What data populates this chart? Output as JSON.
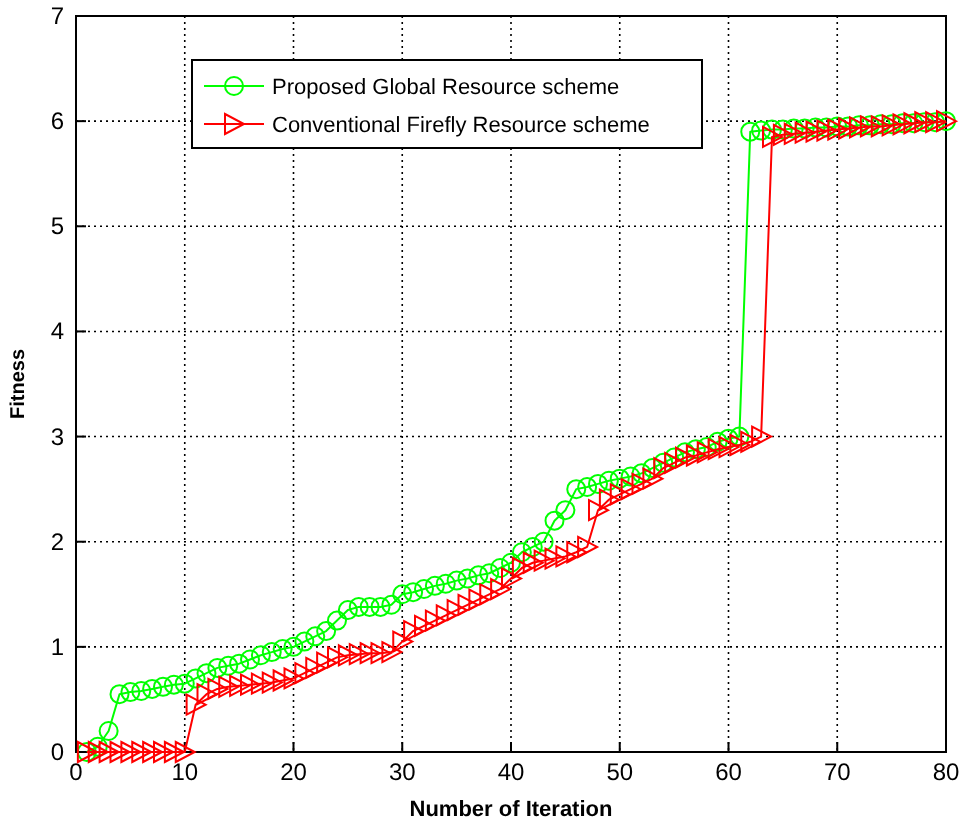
{
  "chart_data": {
    "type": "line",
    "xlabel": "Number of Iteration",
    "ylabel": "Fitness",
    "xlim": [
      0,
      80
    ],
    "ylim": [
      0,
      7
    ],
    "xticks": [
      0,
      10,
      20,
      30,
      40,
      50,
      60,
      70,
      80
    ],
    "yticks": [
      0,
      1,
      2,
      3,
      4,
      5,
      6,
      7
    ],
    "grid": true,
    "legend": "top left",
    "x": [
      1,
      2,
      3,
      4,
      5,
      6,
      7,
      8,
      9,
      10,
      11,
      12,
      13,
      14,
      15,
      16,
      17,
      18,
      19,
      20,
      21,
      22,
      23,
      24,
      25,
      26,
      27,
      28,
      29,
      30,
      31,
      32,
      33,
      34,
      35,
      36,
      37,
      38,
      39,
      40,
      41,
      42,
      43,
      44,
      45,
      46,
      47,
      48,
      49,
      50,
      51,
      52,
      53,
      54,
      55,
      56,
      57,
      58,
      59,
      60,
      61,
      62,
      63,
      64,
      65,
      66,
      67,
      68,
      69,
      70,
      71,
      72,
      73,
      74,
      75,
      76,
      77,
      78,
      79,
      80
    ],
    "series": [
      {
        "name": "Proposed Global Resource scheme",
        "color": "#00ff00",
        "marker": "circle",
        "values": [
          0,
          0.05,
          0.2,
          0.55,
          0.57,
          0.58,
          0.6,
          0.62,
          0.64,
          0.65,
          0.7,
          0.75,
          0.8,
          0.82,
          0.84,
          0.88,
          0.92,
          0.95,
          0.98,
          1.0,
          1.05,
          1.1,
          1.15,
          1.25,
          1.35,
          1.38,
          1.38,
          1.38,
          1.4,
          1.5,
          1.52,
          1.55,
          1.58,
          1.6,
          1.63,
          1.65,
          1.68,
          1.7,
          1.75,
          1.8,
          1.9,
          1.95,
          2.0,
          2.2,
          2.3,
          2.5,
          2.52,
          2.55,
          2.58,
          2.6,
          2.62,
          2.65,
          2.7,
          2.75,
          2.8,
          2.85,
          2.88,
          2.9,
          2.95,
          2.98,
          3.0,
          5.9,
          5.91,
          5.92,
          5.92,
          5.93,
          5.93,
          5.94,
          5.94,
          5.95,
          5.95,
          5.96,
          5.96,
          5.97,
          5.97,
          5.98,
          5.98,
          5.99,
          5.99,
          6.0
        ]
      },
      {
        "name": "Conventional Firefly Resource scheme",
        "color": "#ff0000",
        "marker": "triangle",
        "values": [
          0,
          0,
          0,
          0,
          0,
          0,
          0,
          0,
          0,
          0,
          0.45,
          0.55,
          0.6,
          0.62,
          0.63,
          0.64,
          0.65,
          0.66,
          0.68,
          0.7,
          0.75,
          0.8,
          0.85,
          0.9,
          0.92,
          0.93,
          0.94,
          0.94,
          0.95,
          1.05,
          1.15,
          1.2,
          1.25,
          1.3,
          1.35,
          1.4,
          1.45,
          1.5,
          1.55,
          1.65,
          1.75,
          1.8,
          1.82,
          1.84,
          1.86,
          1.9,
          1.95,
          2.3,
          2.4,
          2.45,
          2.5,
          2.55,
          2.6,
          2.7,
          2.75,
          2.8,
          2.82,
          2.85,
          2.88,
          2.9,
          2.92,
          2.95,
          3.0,
          5.85,
          5.87,
          5.88,
          5.89,
          5.9,
          5.91,
          5.92,
          5.93,
          5.94,
          5.95,
          5.95,
          5.96,
          5.97,
          5.98,
          5.99,
          5.99,
          6.0
        ]
      }
    ]
  }
}
